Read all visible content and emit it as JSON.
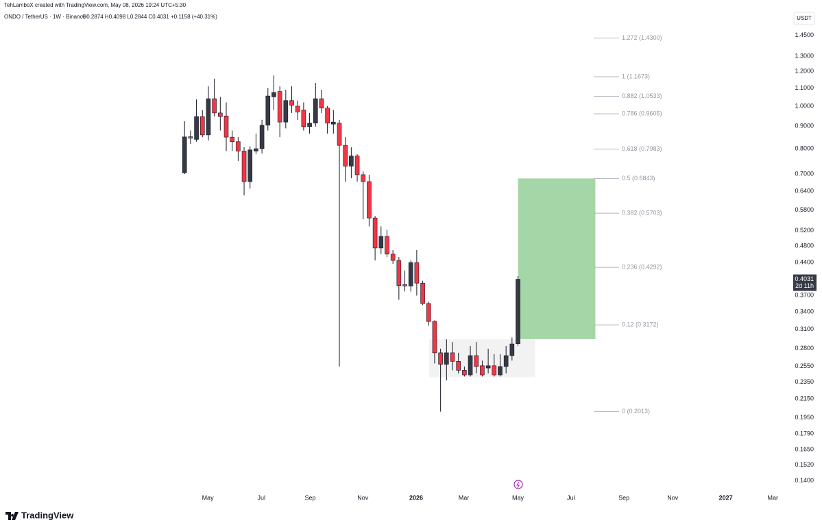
{
  "chart_data": {
    "type": "candlestick",
    "credit": "TehLamboX created with TradingView.com, May 08, 2026 19:24 UTC+5:30",
    "symbol": "ONDO / TetherUS · 1W · Binance",
    "legend_ohlc": "O0.2874 H0.4098 L0.2844 C0.4031 +0.1158 (+40.31%)",
    "currency": "USDT",
    "countdown": "2d 11h",
    "brand": "TradingView",
    "log_scale": true,
    "up_color": "#363a45",
    "down_color": "#f23645",
    "ohlc": [
      [
        0.705,
        0.924,
        0.7,
        0.851
      ],
      [
        0.852,
        0.88,
        0.82,
        0.845
      ],
      [
        0.84,
        1.036,
        0.83,
        0.947
      ],
      [
        0.947,
        0.98,
        0.85,
        0.86
      ],
      [
        0.86,
        1.11,
        0.835,
        1.04
      ],
      [
        1.04,
        1.155,
        0.947,
        0.965
      ],
      [
        0.965,
        1.05,
        0.88,
        0.947
      ],
      [
        0.95,
        1.02,
        0.79,
        0.85
      ],
      [
        0.85,
        0.88,
        0.79,
        0.83
      ],
      [
        0.83,
        0.85,
        0.75,
        0.79
      ],
      [
        0.79,
        0.806,
        0.626,
        0.673
      ],
      [
        0.673,
        0.81,
        0.649,
        0.795
      ],
      [
        0.79,
        0.866,
        0.777,
        0.8
      ],
      [
        0.8,
        0.931,
        0.78,
        0.905
      ],
      [
        0.905,
        1.1,
        0.88,
        1.055
      ],
      [
        1.05,
        1.175,
        0.98,
        1.075
      ],
      [
        1.08,
        1.11,
        0.85,
        0.92
      ],
      [
        0.92,
        1.09,
        0.89,
        1.03
      ],
      [
        1.03,
        1.11,
        0.965,
        1.005
      ],
      [
        1.0,
        1.03,
        0.93,
        0.97
      ],
      [
        0.98,
        1.02,
        0.88,
        0.898
      ],
      [
        0.898,
        0.965,
        0.866,
        0.915
      ],
      [
        0.915,
        1.13,
        0.898,
        1.04
      ],
      [
        1.04,
        1.09,
        0.965,
        0.99
      ],
      [
        0.99,
        1.0,
        0.866,
        0.915
      ],
      [
        0.91,
        0.98,
        0.866,
        0.92
      ],
      [
        0.915,
        0.931,
        0.255,
        0.814
      ],
      [
        0.814,
        0.85,
        0.673,
        0.73
      ],
      [
        0.73,
        0.806,
        0.685,
        0.77
      ],
      [
        0.77,
        0.777,
        0.673,
        0.698
      ],
      [
        0.698,
        0.71,
        0.552,
        0.673
      ],
      [
        0.673,
        0.698,
        0.532,
        0.556
      ],
      [
        0.556,
        0.562,
        0.445,
        0.475
      ],
      [
        0.475,
        0.532,
        0.46,
        0.505
      ],
      [
        0.505,
        0.523,
        0.453,
        0.46
      ],
      [
        0.46,
        0.47,
        0.437,
        0.445
      ],
      [
        0.445,
        0.453,
        0.362,
        0.39
      ],
      [
        0.392,
        0.422,
        0.378,
        0.389
      ],
      [
        0.389,
        0.445,
        0.378,
        0.44
      ],
      [
        0.44,
        0.47,
        0.37,
        0.395
      ],
      [
        0.395,
        0.4,
        0.352,
        0.355
      ],
      [
        0.355,
        0.358,
        0.316,
        0.323
      ],
      [
        0.323,
        0.325,
        0.259,
        0.274
      ],
      [
        0.274,
        0.28,
        0.2013,
        0.258
      ],
      [
        0.258,
        0.294,
        0.237,
        0.274
      ],
      [
        0.274,
        0.29,
        0.25,
        0.262
      ],
      [
        0.262,
        0.274,
        0.246,
        0.25
      ],
      [
        0.25,
        0.255,
        0.242,
        0.244
      ],
      [
        0.244,
        0.284,
        0.242,
        0.27
      ],
      [
        0.27,
        0.29,
        0.246,
        0.255
      ],
      [
        0.256,
        0.263,
        0.242,
        0.244
      ],
      [
        0.253,
        0.28,
        0.246,
        0.256
      ],
      [
        0.256,
        0.272,
        0.242,
        0.244
      ],
      [
        0.244,
        0.272,
        0.242,
        0.255
      ],
      [
        0.255,
        0.284,
        0.246,
        0.27
      ],
      [
        0.27,
        0.297,
        0.263,
        0.287
      ],
      [
        0.2874,
        0.4098,
        0.2844,
        0.4031
      ]
    ],
    "xlim": [
      -31,
      102
    ],
    "xticks": [
      {
        "value": 3.9,
        "label": "May"
      },
      {
        "value": 12.9,
        "label": "Jul"
      },
      {
        "value": 21.1,
        "label": "Sep"
      },
      {
        "value": 29.95,
        "label": "Nov"
      },
      {
        "value": 38.9,
        "label": "2026"
      },
      {
        "value": 46.9,
        "label": "Mar"
      },
      {
        "value": 56,
        "label": "May"
      },
      {
        "value": 64.9,
        "label": "Jul"
      },
      {
        "value": 73.8,
        "label": "Sep"
      },
      {
        "value": 82,
        "label": "Nov"
      },
      {
        "value": 90.9,
        "label": "2027"
      },
      {
        "value": 98.8,
        "label": "Mar"
      }
    ],
    "ylim": [
      0.1334,
      1.746
    ],
    "yticks": [
      {
        "value": 1.45,
        "label": "1.4500"
      },
      {
        "value": 1.3,
        "label": "1.3000"
      },
      {
        "value": 1.2,
        "label": "1.2000"
      },
      {
        "value": 1.1,
        "label": "1.1000"
      },
      {
        "value": 1.0,
        "label": "1.0000"
      },
      {
        "value": 0.9,
        "label": "0.9000"
      },
      {
        "value": 0.8,
        "label": "0.8000"
      },
      {
        "value": 0.7,
        "label": "0.7000"
      },
      {
        "value": 0.64,
        "label": "0.6400"
      },
      {
        "value": 0.58,
        "label": "0.5800"
      },
      {
        "value": 0.52,
        "label": "0.5200"
      },
      {
        "value": 0.48,
        "label": "0.4800"
      },
      {
        "value": 0.44,
        "label": "0.4400"
      },
      {
        "value": 0.37,
        "label": "0.3700"
      },
      {
        "value": 0.34,
        "label": "0.3400"
      },
      {
        "value": 0.31,
        "label": "0.3100"
      },
      {
        "value": 0.28,
        "label": "0.2800"
      },
      {
        "value": 0.255,
        "label": "0.2550"
      },
      {
        "value": 0.235,
        "label": "0.2350"
      },
      {
        "value": 0.215,
        "label": "0.2150"
      },
      {
        "value": 0.195,
        "label": "0.1950"
      },
      {
        "value": 0.179,
        "label": "0.1790"
      },
      {
        "value": 0.165,
        "label": "0.1650"
      },
      {
        "value": 0.152,
        "label": "0.1520"
      },
      {
        "value": 0.14,
        "label": "0.1400"
      }
    ],
    "fib_levels": [
      {
        "value": 1.43,
        "label": "1.272 (1.4300)"
      },
      {
        "value": 1.1673,
        "label": "1 (1.1673)"
      },
      {
        "value": 1.0533,
        "label": "0.882 (1.0533)"
      },
      {
        "value": 0.9605,
        "label": "0.786 (0.9605)"
      },
      {
        "value": 0.7983,
        "label": "0.618 (0.7983)"
      },
      {
        "value": 0.6843,
        "label": "0.5 (0.6843)"
      },
      {
        "value": 0.5703,
        "label": "0.382 (0.5703)"
      },
      {
        "value": 0.4292,
        "label": "0.236 (0.4292)"
      },
      {
        "value": 0.3172,
        "label": "0.12 (0.3172)"
      },
      {
        "value": 0.2013,
        "label": "0 (0.2013)"
      }
    ],
    "zones": [
      {
        "x": [
          41.1,
          58.9
        ],
        "y": [
          0.241,
          0.294
        ],
        "color": "#f2f2f2"
      },
      {
        "x": [
          56,
          69
        ],
        "y": [
          0.2944,
          0.6843
        ],
        "color": "#a5d6a7"
      }
    ]
  }
}
